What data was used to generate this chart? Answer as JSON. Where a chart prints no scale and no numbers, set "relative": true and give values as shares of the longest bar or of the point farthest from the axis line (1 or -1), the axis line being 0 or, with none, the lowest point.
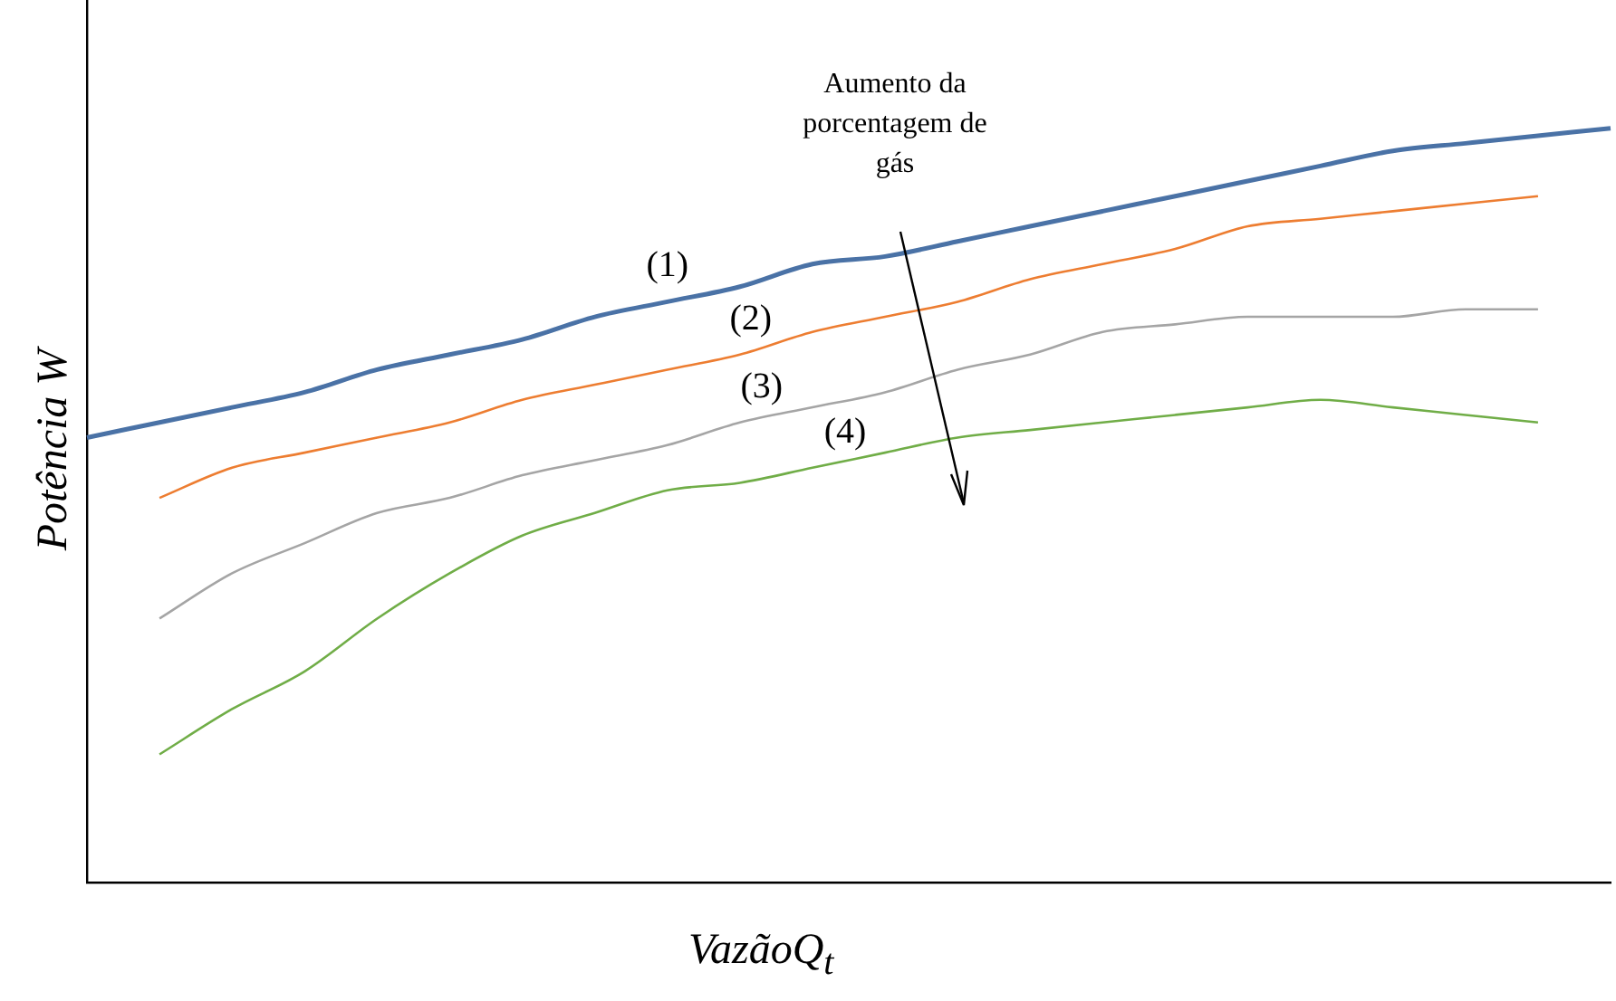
{
  "chart_data": {
    "type": "line",
    "relative": true,
    "xlabel": "VazãoQ$_{t}$",
    "ylabel": "Potência W",
    "categories": [
      null,
      null,
      null,
      null,
      null,
      null,
      null,
      null,
      null,
      null,
      null,
      null,
      null,
      null,
      null,
      null,
      null,
      null,
      null,
      null,
      null,
      null
    ],
    "series": [
      {
        "name": "(1)",
        "color": "#4a72a6",
        "values": [
          0.59,
          0.61,
          0.63,
          0.65,
          0.68,
          0.7,
          0.72,
          0.75,
          0.77,
          0.79,
          0.82,
          0.83,
          0.85,
          0.87,
          0.89,
          0.91,
          0.93,
          0.95,
          0.97,
          0.98,
          0.99,
          1
        ]
      },
      {
        "name": "(2)",
        "color": "#ed7d31",
        "values": [
          null,
          0.51,
          0.55,
          0.57,
          0.59,
          0.61,
          0.64,
          0.66,
          0.68,
          0.7,
          0.73,
          0.75,
          0.77,
          0.8,
          0.82,
          0.84,
          0.87,
          0.88,
          0.89,
          0.9,
          0.91,
          null
        ]
      },
      {
        "name": "(3)",
        "color": "#a5a5a5",
        "values": [
          null,
          0.35,
          0.41,
          0.45,
          0.49,
          0.51,
          0.54,
          0.56,
          0.58,
          0.61,
          0.63,
          0.65,
          0.68,
          0.7,
          0.73,
          0.74,
          0.75,
          0.75,
          0.75,
          0.76,
          0.76,
          null
        ]
      },
      {
        "name": "(4)",
        "color": "#70ad47",
        "values": [
          null,
          0.17,
          0.23,
          0.28,
          0.35,
          0.41,
          0.46,
          0.49,
          0.52,
          0.53,
          0.55,
          0.57,
          0.59,
          0.6,
          0.61,
          0.62,
          0.63,
          0.64,
          0.63,
          0.62,
          0.61,
          null
        ]
      }
    ],
    "annotations": [
      "Aumento da porcentagem de gás"
    ],
    "grid": false,
    "legend": false,
    "marker": "none",
    "line_style": "solid"
  }
}
